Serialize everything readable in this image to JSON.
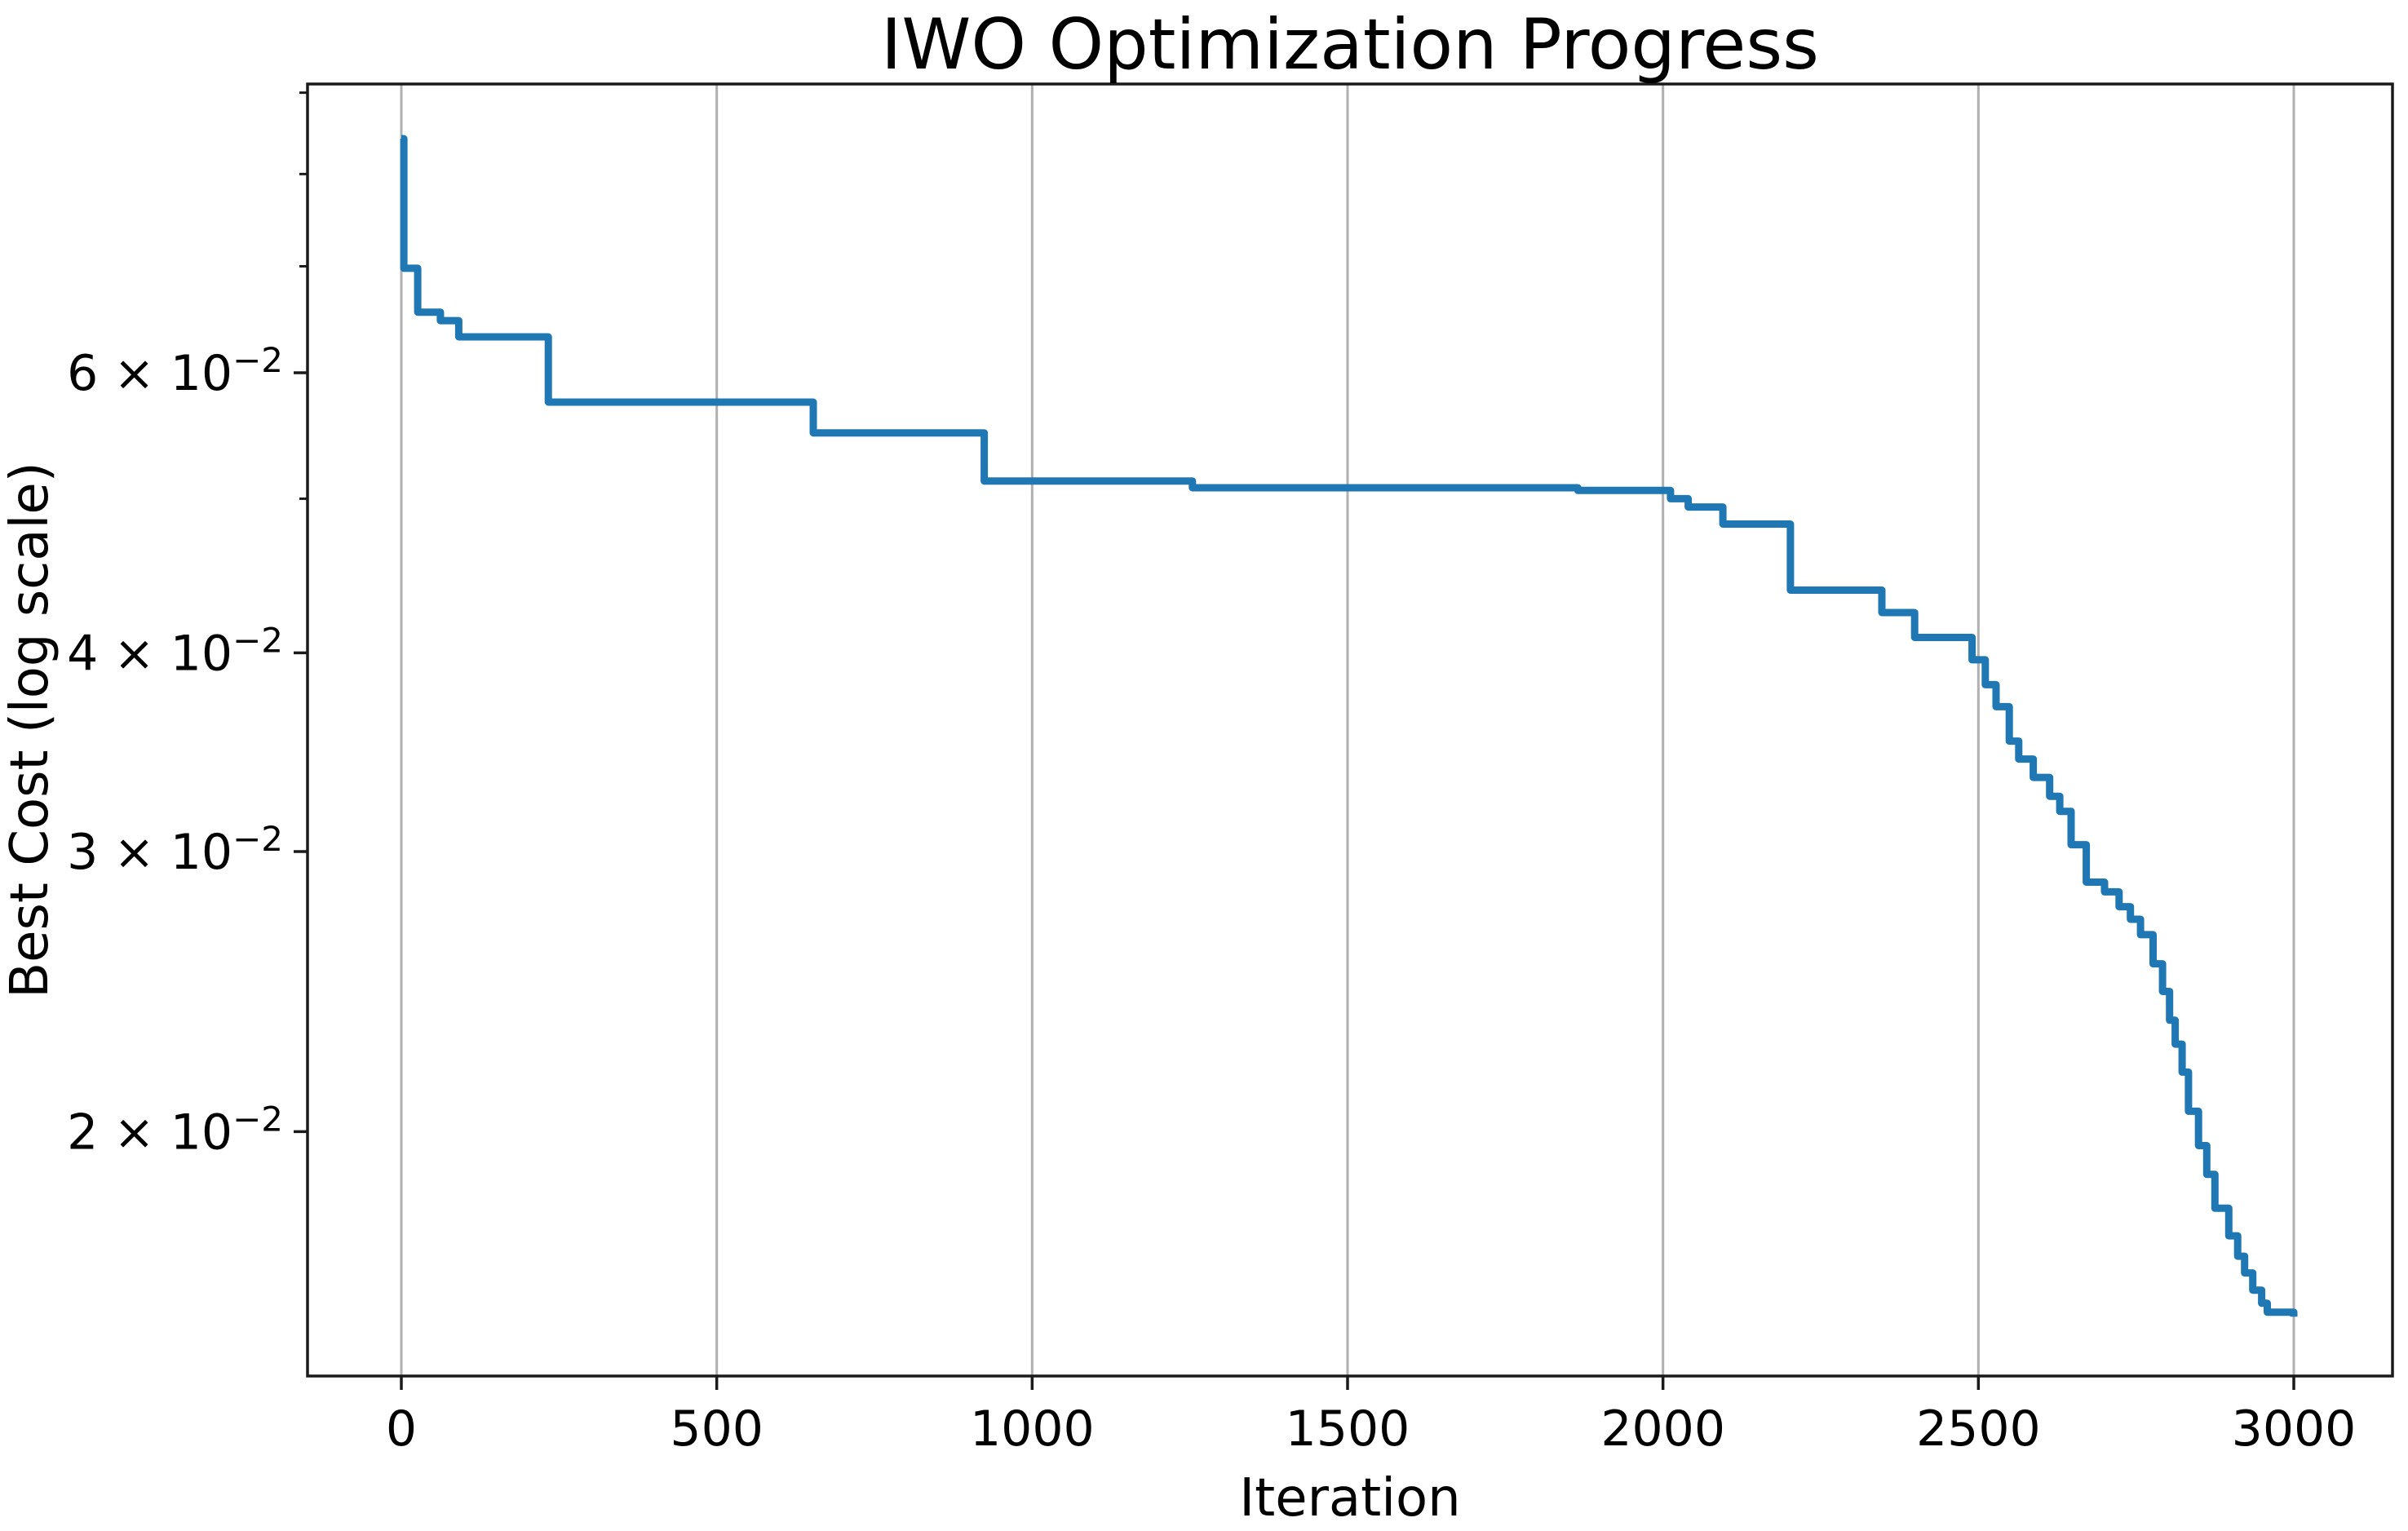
{
  "chart_data": {
    "type": "line",
    "title": "IWO Optimization Progress",
    "xlabel": "Iteration",
    "ylabel": "Best Cost (log scale)",
    "x_ticks": [
      0,
      500,
      1000,
      1500,
      2000,
      2500,
      3000
    ],
    "y_scale": "log",
    "y_major_ticks": [
      {
        "value": 0.06,
        "mantissa": "6",
        "base": "10",
        "exponent": "−2"
      },
      {
        "value": 0.04,
        "mantissa": "4",
        "base": "10",
        "exponent": "−2"
      },
      {
        "value": 0.03,
        "mantissa": "3",
        "base": "10",
        "exponent": "−2"
      },
      {
        "value": 0.02,
        "mantissa": "2",
        "base": "10",
        "exponent": "−2"
      }
    ],
    "y_minor_ticks": [
      0.09,
      0.08,
      0.07,
      0.05
    ],
    "xlim": [
      -149,
      3156
    ],
    "ylim": [
      0.014,
      0.0911
    ],
    "grid": "vertical-only",
    "legend": "none",
    "line_color": "#1f77b4",
    "grid_color": "#b0b0b0",
    "spine_color": "#1a1a1a",
    "series": [
      {
        "name": "Best Cost",
        "points": [
          [
            0,
            0.0842
          ],
          [
            4,
            0.0698
          ],
          [
            26,
            0.0655
          ],
          [
            62,
            0.0647
          ],
          [
            91,
            0.0632
          ],
          [
            233,
            0.0575
          ],
          [
            653,
            0.055
          ],
          [
            924,
            0.0513
          ],
          [
            1254,
            0.0508
          ],
          [
            1865,
            0.0506
          ],
          [
            2012,
            0.05
          ],
          [
            2040,
            0.0494
          ],
          [
            2095,
            0.0482
          ],
          [
            2202,
            0.0438
          ],
          [
            2347,
            0.0424
          ],
          [
            2399,
            0.0409
          ],
          [
            2490,
            0.0396
          ],
          [
            2511,
            0.0382
          ],
          [
            2528,
            0.037
          ],
          [
            2549,
            0.0352
          ],
          [
            2564,
            0.0343
          ],
          [
            2587,
            0.0334
          ],
          [
            2613,
            0.0325
          ],
          [
            2629,
            0.0318
          ],
          [
            2647,
            0.0303
          ],
          [
            2671,
            0.0287
          ],
          [
            2700,
            0.0283
          ],
          [
            2723,
            0.0277
          ],
          [
            2741,
            0.0272
          ],
          [
            2757,
            0.0266
          ],
          [
            2777,
            0.0255
          ],
          [
            2792,
            0.0245
          ],
          [
            2803,
            0.0235
          ],
          [
            2812,
            0.0227
          ],
          [
            2823,
            0.0218
          ],
          [
            2833,
            0.0206
          ],
          [
            2849,
            0.0196
          ],
          [
            2862,
            0.0188
          ],
          [
            2875,
            0.0179
          ],
          [
            2897,
            0.0172
          ],
          [
            2911,
            0.0167
          ],
          [
            2922,
            0.0163
          ],
          [
            2935,
            0.0159
          ],
          [
            2949,
            0.0156
          ],
          [
            2958,
            0.0154
          ],
          [
            3000,
            0.0153
          ]
        ]
      }
    ]
  }
}
